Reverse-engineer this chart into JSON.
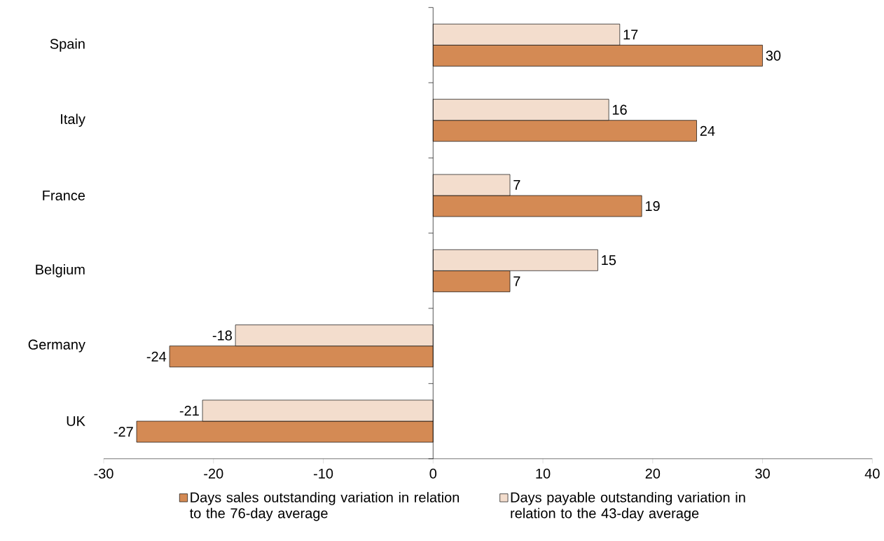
{
  "chart_data": {
    "type": "bar",
    "orientation": "horizontal",
    "categories": [
      "Spain",
      "Italy",
      "France",
      "Belgium",
      "Germany",
      "UK"
    ],
    "series": [
      {
        "name": "Days sales outstanding variation in relation to the 76-day average",
        "color": "#d48a54",
        "values": [
          30,
          24,
          19,
          7,
          -24,
          -27
        ]
      },
      {
        "name": "Days payable outstanding variation in relation to the 43-day average",
        "color": "#f3ddcd",
        "values": [
          17,
          16,
          7,
          15,
          -18,
          -21
        ]
      }
    ],
    "xlim": [
      -30,
      40
    ],
    "xticks": [
      -30,
      -20,
      -10,
      0,
      10,
      20,
      30,
      40
    ],
    "data_labels": true,
    "legend": "bottom"
  }
}
